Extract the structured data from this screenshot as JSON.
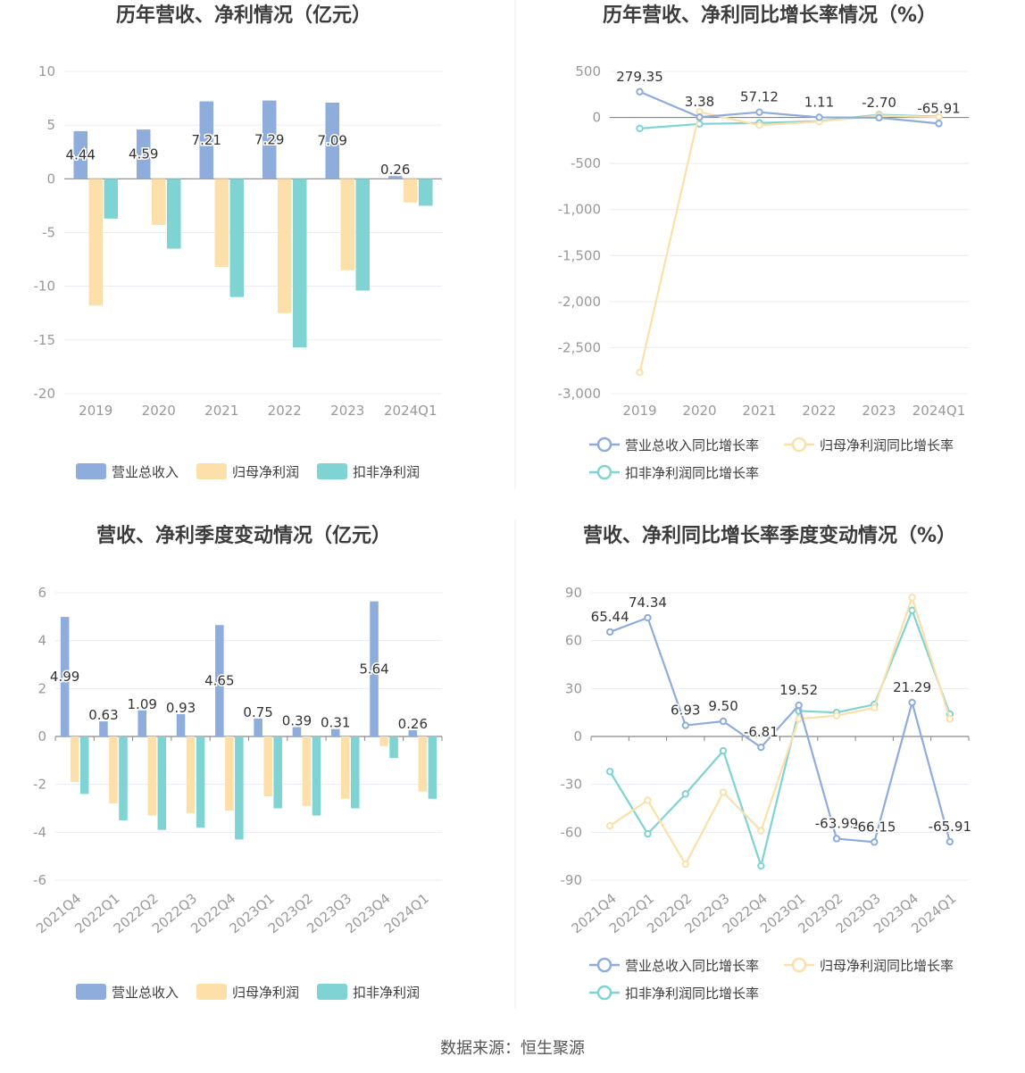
{
  "colors": {
    "revenue": "#8eacdc",
    "net_profit": "#fde0a9",
    "deducted_profit": "#7fd3d2",
    "axis": "#999999",
    "grid": "#e8ecf4",
    "zero_line": "#888888",
    "title": "#3c3c3c",
    "label": "#333333"
  },
  "source": "数据来源：恒生聚源",
  "chart_data": [
    {
      "type": "bar",
      "title": "历年营收、净利情况（亿元）",
      "categories": [
        "2019",
        "2020",
        "2021",
        "2022",
        "2023",
        "2024Q1"
      ],
      "ylim": [
        -20,
        10
      ],
      "yticks": [
        10,
        5,
        0,
        -5,
        -10,
        -15,
        -20
      ],
      "ytick_labels": [
        "10",
        "5",
        "0",
        "-5",
        "-10",
        "-15",
        "-20"
      ],
      "grid": true,
      "legend_position": "bottom",
      "series": [
        {
          "name": "营业总收入",
          "values": [
            4.44,
            4.59,
            7.21,
            7.29,
            7.09,
            0.26
          ],
          "labels": [
            "4.44",
            "4.59",
            "7.21",
            "7.29",
            "7.09",
            "0.26"
          ]
        },
        {
          "name": "归母净利润",
          "values": [
            -11.8,
            -4.3,
            -8.2,
            -12.5,
            -8.5,
            -2.2
          ]
        },
        {
          "name": "扣非净利润",
          "values": [
            -3.7,
            -6.5,
            -11.0,
            -15.7,
            -10.4,
            -2.5
          ]
        }
      ]
    },
    {
      "type": "line",
      "title": "历年营收、净利同比增长率情况（%）",
      "categories": [
        "2019",
        "2020",
        "2021",
        "2022",
        "2023",
        "2024Q1"
      ],
      "ylim": [
        -3000,
        500
      ],
      "yticks": [
        500,
        0,
        -500,
        -1000,
        -1500,
        -2000,
        -2500,
        -3000
      ],
      "ytick_labels": [
        "500",
        "0",
        "-500",
        "-1,000",
        "-1,500",
        "-2,000",
        "-2,500",
        "-3,000"
      ],
      "grid": true,
      "legend_position": "bottom",
      "series": [
        {
          "name": "营业总收入同比增长率",
          "values": [
            279.35,
            3.38,
            57.12,
            1.11,
            -2.7,
            -65.91
          ],
          "labels": [
            "279.35",
            "3.38",
            "57.12",
            "1.11",
            "-2.70",
            "-65.91"
          ]
        },
        {
          "name": "归母净利润同比增长率",
          "values": [
            -2770,
            60,
            -85,
            -45,
            20,
            5
          ]
        },
        {
          "name": "扣非净利润同比增长率",
          "values": [
            -120,
            -70,
            -60,
            -40,
            30,
            10
          ]
        }
      ]
    },
    {
      "type": "bar",
      "title": "营收、净利季度变动情况（亿元）",
      "categories": [
        "2021Q4",
        "2022Q1",
        "2022Q2",
        "2022Q3",
        "2022Q4",
        "2023Q1",
        "2023Q2",
        "2023Q3",
        "2023Q4",
        "2024Q1"
      ],
      "ylim": [
        -6,
        6
      ],
      "yticks": [
        6,
        4,
        2,
        0,
        -2,
        -4,
        -6
      ],
      "ytick_labels": [
        "6",
        "4",
        "2",
        "0",
        "-2",
        "-4",
        "-6"
      ],
      "grid": true,
      "legend_position": "bottom",
      "series": [
        {
          "name": "营业总收入",
          "values": [
            4.99,
            0.63,
            1.09,
            0.93,
            4.65,
            0.75,
            0.39,
            0.31,
            5.64,
            0.26
          ],
          "labels": [
            "4.99",
            "0.63",
            "1.09",
            "0.93",
            "4.65",
            "0.75",
            "0.39",
            "0.31",
            "5.64",
            "0.26"
          ]
        },
        {
          "name": "归母净利润",
          "values": [
            -1.9,
            -2.8,
            -3.3,
            -3.2,
            -3.1,
            -2.5,
            -2.9,
            -2.6,
            -0.4,
            -2.3
          ]
        },
        {
          "name": "扣非净利润",
          "values": [
            -2.4,
            -3.5,
            -3.9,
            -3.8,
            -4.3,
            -3.0,
            -3.3,
            -3.0,
            -0.9,
            -2.6
          ]
        }
      ]
    },
    {
      "type": "line",
      "title": "营收、净利同比增长率季度变动情况（%）",
      "categories": [
        "2021Q4",
        "2022Q1",
        "2022Q2",
        "2022Q3",
        "2022Q4",
        "2023Q1",
        "2023Q2",
        "2023Q3",
        "2023Q4",
        "2024Q1"
      ],
      "ylim": [
        -90,
        90
      ],
      "yticks": [
        90,
        60,
        30,
        0,
        -30,
        -60,
        -90
      ],
      "ytick_labels": [
        "90",
        "60",
        "30",
        "0",
        "-30",
        "-60",
        "-90"
      ],
      "grid": true,
      "legend_position": "bottom",
      "series": [
        {
          "name": "营业总收入同比增长率",
          "values": [
            65.44,
            74.34,
            6.93,
            9.5,
            -6.81,
            19.52,
            -63.99,
            -66.15,
            21.29,
            -65.91
          ],
          "labels": [
            "65.44",
            "74.34",
            "6.93",
            "9.50",
            "-6.81",
            "19.52",
            "-63.99",
            "-66.15",
            "21.29",
            "-65.91"
          ]
        },
        {
          "name": "归母净利润同比增长率",
          "values": [
            -56,
            -40,
            -80,
            -35,
            -59,
            11,
            13,
            18,
            87,
            11
          ]
        },
        {
          "name": "扣非净利润同比增长率",
          "values": [
            -22,
            -61,
            -36,
            -9,
            -81,
            16,
            15,
            20,
            79,
            14
          ]
        }
      ]
    }
  ]
}
